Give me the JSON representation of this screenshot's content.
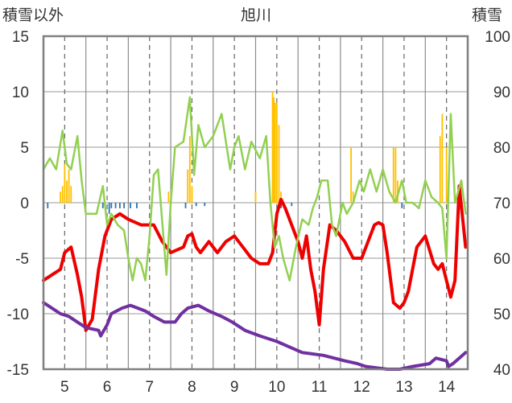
{
  "chart_data": {
    "type": "line",
    "title": "旭川",
    "ylabel_left": "積雪以外",
    "ylabel_right": "積雪",
    "xlim": [
      4.5,
      14.5
    ],
    "ylim": [
      -15,
      15
    ],
    "y2lim": [
      40,
      100
    ],
    "x_ticks": [
      "5",
      "6",
      "7",
      "8",
      "9",
      "10",
      "11",
      "12",
      "13",
      "14"
    ],
    "y_ticks": [
      "15",
      "10",
      "5",
      "0",
      "-5",
      "-10",
      "-15"
    ],
    "y2_ticks": [
      "100",
      "90",
      "80",
      "70",
      "60",
      "50",
      "40"
    ],
    "colors": {
      "red": "#ee0000",
      "green": "#92d050",
      "purple": "#7030a0",
      "orange": "#ffc000",
      "blue": "#2e75b6",
      "frame": "#808080"
    },
    "series": [
      {
        "color": "red",
        "axis": "left",
        "x": [
          4.5,
          4.7,
          4.9,
          5.0,
          5.15,
          5.3,
          5.4,
          5.45,
          5.5,
          5.65,
          5.8,
          5.95,
          6.1,
          6.3,
          6.5,
          6.8,
          7.1,
          7.3,
          7.5,
          7.8,
          7.9,
          8.0,
          8.1,
          8.2,
          8.4,
          8.6,
          8.8,
          9.0,
          9.2,
          9.4,
          9.6,
          9.8,
          9.9,
          10.0,
          10.1,
          10.2,
          10.35,
          10.5,
          10.6,
          10.7,
          10.8,
          10.9,
          11.0,
          11.1,
          11.25,
          11.4,
          11.6,
          11.8,
          12.0,
          12.2,
          12.3,
          12.4,
          12.5,
          12.6,
          12.75,
          12.9,
          13.0,
          13.1,
          13.3,
          13.5,
          13.7,
          13.8,
          13.9,
          14.0,
          14.1,
          14.2,
          14.3,
          14.45
        ],
        "y": [
          -7,
          -6.5,
          -6,
          -4.5,
          -4,
          -6.5,
          -8.5,
          -10,
          -11.5,
          -10.5,
          -6,
          -3,
          -1.5,
          -1,
          -1.5,
          -2,
          -2,
          -3.5,
          -4.5,
          -4,
          -3,
          -2.8,
          -4,
          -4.5,
          -3.5,
          -4.5,
          -3.5,
          -3,
          -4,
          -5,
          -5.5,
          -5.5,
          -4.5,
          -1,
          0.3,
          -0.5,
          -2,
          -3.5,
          -5,
          -3,
          -6,
          -8,
          -11,
          -6,
          -2,
          -2.5,
          -3.5,
          -5,
          -5,
          -3,
          -2,
          -1.8,
          -2,
          -4.5,
          -9,
          -9.5,
          -9,
          -8,
          -4,
          -3,
          -5.5,
          -6,
          -5.5,
          -7,
          -8.5,
          -7,
          1.5,
          -4
        ]
      },
      {
        "color": "green",
        "axis": "left",
        "x": [
          4.5,
          4.65,
          4.8,
          4.95,
          5.05,
          5.15,
          5.3,
          5.4,
          5.5,
          5.6,
          5.75,
          5.9,
          6.0,
          6.1,
          6.25,
          6.4,
          6.5,
          6.6,
          6.7,
          6.8,
          6.9,
          7.0,
          7.1,
          7.2,
          7.4,
          7.5,
          7.6,
          7.8,
          7.95,
          8.05,
          8.15,
          8.3,
          8.5,
          8.7,
          8.9,
          9.0,
          9.1,
          9.25,
          9.4,
          9.6,
          9.75,
          9.85,
          9.95,
          10.05,
          10.15,
          10.3,
          10.45,
          10.6,
          10.75,
          10.85,
          10.95,
          11.05,
          11.2,
          11.3,
          11.4,
          11.55,
          11.65,
          11.8,
          11.95,
          12.05,
          12.2,
          12.35,
          12.5,
          12.65,
          12.8,
          12.95,
          13.05,
          13.2,
          13.35,
          13.5,
          13.65,
          13.8,
          13.9,
          14.0,
          14.1,
          14.2,
          14.35,
          14.45
        ],
        "y": [
          3,
          4,
          3,
          6.5,
          3.5,
          3,
          6,
          2,
          -1,
          -1,
          -1,
          1.5,
          -2,
          -1,
          -2,
          -2.5,
          -5,
          -7,
          -5,
          -5.5,
          -7,
          -3,
          2.5,
          3,
          -6.5,
          0,
          5,
          5.5,
          9.5,
          2.5,
          7,
          5,
          6,
          8,
          3,
          5,
          6,
          3,
          5.5,
          4,
          6,
          0,
          -4,
          -3,
          -5,
          -7,
          -4,
          -1.5,
          -2,
          -0.5,
          0.5,
          2,
          2,
          -2,
          -3,
          0,
          -1,
          0,
          2,
          1,
          3,
          1,
          3,
          1,
          0,
          2,
          0,
          0,
          -0.5,
          2,
          0.5,
          0,
          -0.5,
          -5,
          8,
          0,
          2,
          -1
        ]
      },
      {
        "color": "purple",
        "axis": "right",
        "x": [
          4.5,
          4.7,
          4.9,
          5.1,
          5.3,
          5.5,
          5.8,
          5.85,
          6.0,
          6.1,
          6.35,
          6.55,
          6.9,
          7.1,
          7.35,
          7.6,
          7.75,
          7.9,
          8.15,
          8.4,
          8.7,
          8.95,
          9.25,
          9.6,
          10.0,
          10.3,
          10.6,
          11.1,
          11.35,
          11.6,
          11.9,
          12.1,
          12.6,
          12.9,
          13.2,
          13.6,
          13.75,
          14.0,
          14.05,
          14.15,
          14.3,
          14.45
        ],
        "y": [
          52,
          51,
          50,
          49.5,
          48.5,
          47.5,
          47,
          46,
          48,
          50,
          51,
          51.5,
          50.5,
          49.5,
          48.5,
          48.5,
          50,
          51,
          51.5,
          50.5,
          49.5,
          48.5,
          47,
          46,
          45,
          44,
          43,
          42.5,
          42,
          41.5,
          41,
          40.5,
          40,
          40,
          40.5,
          41,
          42,
          41.5,
          40.5,
          41,
          42,
          43
        ]
      }
    ],
    "bars": [
      {
        "color": "orange",
        "x": [
          4.9,
          4.95,
          5.0,
          5.05,
          5.1,
          5.15,
          7.45,
          7.9,
          7.95,
          8.0,
          9.5,
          9.9,
          9.93,
          9.96,
          10.0,
          10.05,
          10.1,
          11.75,
          11.8,
          12.75,
          12.8,
          12.85,
          13.85,
          13.9,
          14.0,
          14.05
        ],
        "y": [
          1,
          1.5,
          3.5,
          2,
          3,
          1.5,
          1,
          3,
          6,
          1.5,
          1,
          10,
          9.5,
          9,
          9,
          7,
          1,
          5,
          1,
          5,
          5,
          2,
          6,
          8,
          5,
          2
        ]
      },
      {
        "color": "blue",
        "x": [
          4.6,
          5.9,
          6.05,
          6.1,
          6.2,
          6.3,
          6.4,
          6.55,
          6.7,
          7.85,
          8.1,
          8.3,
          10.1,
          10.35,
          12.95,
          14.3
        ],
        "y": [
          -0.5,
          -0.5,
          -1,
          -0.5,
          -0.5,
          -0.5,
          -0.5,
          -0.5,
          -0.5,
          -0.5,
          -0.3,
          -0.3,
          -0.5,
          -0.3,
          -0.5,
          -0.3
        ]
      }
    ]
  }
}
